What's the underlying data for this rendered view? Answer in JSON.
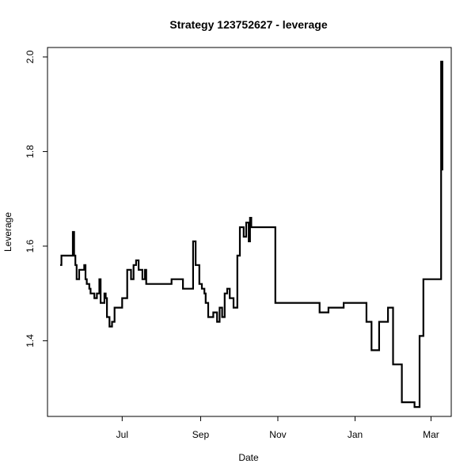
{
  "chart_data": {
    "type": "line",
    "title": "Strategy 123752627 - leverage",
    "xlabel": "Date",
    "ylabel": "Leverage",
    "x_ticks": [
      {
        "label": "Jul",
        "date": "2019-07-01"
      },
      {
        "label": "Sep",
        "date": "2019-09-01"
      },
      {
        "label": "Nov",
        "date": "2019-11-01"
      },
      {
        "label": "Jan",
        "date": "2020-01-01"
      },
      {
        "label": "Mar",
        "date": "2020-03-01"
      }
    ],
    "y_ticks": [
      "1.4",
      "1.6",
      "1.8",
      "2.0"
    ],
    "xlim": [
      "2019-05-03",
      "2020-03-17"
    ],
    "ylim": [
      1.24,
      2.02
    ],
    "grid": false,
    "legend": "none",
    "series": [
      {
        "x": [
          "2019-05-13",
          "2019-05-14",
          "2019-05-16",
          "2019-05-21",
          "2019-05-23",
          "2019-05-24",
          "2019-05-25",
          "2019-05-26",
          "2019-05-27",
          "2019-05-28",
          "2019-06-01",
          "2019-06-02",
          "2019-06-03",
          "2019-06-04",
          "2019-06-05",
          "2019-06-06",
          "2019-06-07",
          "2019-06-09",
          "2019-06-11",
          "2019-06-13",
          "2019-06-14",
          "2019-06-17",
          "2019-06-18",
          "2019-06-19",
          "2019-06-21",
          "2019-06-23",
          "2019-06-25",
          "2019-06-27",
          "2019-07-01",
          "2019-07-05",
          "2019-07-08",
          "2019-07-10",
          "2019-07-12",
          "2019-07-14",
          "2019-07-17",
          "2019-07-19",
          "2019-07-20",
          "2019-07-22",
          "2019-07-24",
          "2019-07-27",
          "2019-07-28",
          "2019-08-09",
          "2019-08-18",
          "2019-08-26",
          "2019-08-28",
          "2019-08-31",
          "2019-09-02",
          "2019-09-04",
          "2019-09-05",
          "2019-09-07",
          "2019-09-09",
          "2019-09-11",
          "2019-09-14",
          "2019-09-16",
          "2019-09-18",
          "2019-09-20",
          "2019-09-22",
          "2019-09-24",
          "2019-09-27",
          "2019-09-30",
          "2019-10-02",
          "2019-10-05",
          "2019-10-07",
          "2019-10-09",
          "2019-10-10",
          "2019-10-11",
          "2019-10-12",
          "2019-10-14",
          "2019-10-30",
          "2019-11-27",
          "2019-12-04",
          "2019-12-11",
          "2019-12-23",
          "2020-01-06",
          "2020-01-10",
          "2020-01-14",
          "2020-01-20",
          "2020-01-27",
          "2020-01-31",
          "2020-02-07",
          "2020-02-10",
          "2020-02-17",
          "2020-02-21",
          "2020-02-24",
          "2020-02-27",
          "2020-03-01",
          "2020-03-08",
          "2020-03-09",
          "2020-03-10"
        ],
        "y": [
          1.56,
          1.58,
          1.58,
          1.58,
          1.63,
          1.58,
          1.56,
          1.53,
          1.53,
          1.55,
          1.56,
          1.53,
          1.52,
          1.52,
          1.51,
          1.5,
          1.5,
          1.49,
          1.5,
          1.53,
          1.48,
          1.5,
          1.49,
          1.45,
          1.43,
          1.44,
          1.47,
          1.47,
          1.49,
          1.55,
          1.53,
          1.56,
          1.57,
          1.55,
          1.53,
          1.55,
          1.52,
          1.52,
          1.52,
          1.52,
          1.52,
          1.53,
          1.51,
          1.61,
          1.56,
          1.52,
          1.51,
          1.5,
          1.48,
          1.45,
          1.45,
          1.46,
          1.44,
          1.47,
          1.45,
          1.5,
          1.51,
          1.49,
          1.47,
          1.58,
          1.64,
          1.62,
          1.65,
          1.61,
          1.66,
          1.64,
          1.64,
          1.64,
          1.48,
          1.48,
          1.46,
          1.47,
          1.48,
          1.48,
          1.44,
          1.38,
          1.44,
          1.47,
          1.35,
          1.27,
          1.27,
          1.26,
          1.41,
          1.53,
          1.53,
          1.53,
          1.53,
          1.99,
          1.76
        ]
      }
    ]
  }
}
